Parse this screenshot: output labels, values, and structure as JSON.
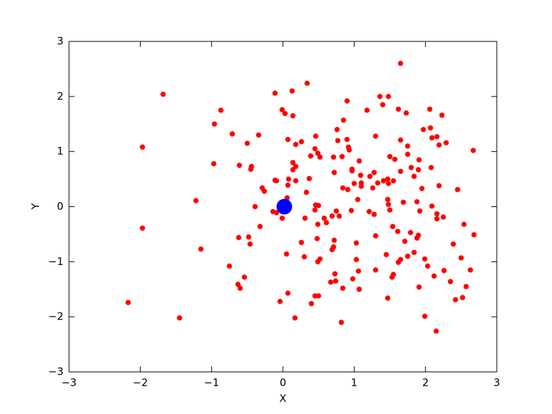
{
  "chart_data": {
    "type": "scatter",
    "xlabel": "X",
    "ylabel": "Y",
    "xlim": [
      -3,
      3
    ],
    "ylim": [
      -3,
      3
    ],
    "xticks": [
      {
        "value": -3,
        "label": "−3"
      },
      {
        "value": -2,
        "label": "−2"
      },
      {
        "value": -1,
        "label": "−1"
      },
      0,
      1,
      2,
      3
    ],
    "yticks": [
      {
        "value": -3,
        "label": "−3"
      },
      {
        "value": -2,
        "label": "−2"
      },
      {
        "value": -1,
        "label": "−1"
      },
      0,
      1,
      2,
      3
    ],
    "grid": false,
    "series": [
      {
        "color": "#ff0000",
        "marker_size": 7,
        "x": [
          1.65,
          -1.68,
          0.34,
          -0.11,
          0.13,
          1.36,
          1.48,
          1.4,
          -0.87,
          -0.01,
          0.03,
          0.14,
          1.18,
          0.9,
          1.62,
          1.73,
          2.06,
          2.23,
          -0.96,
          0.85,
          -0.71,
          -0.34,
          0.76,
          1.97,
          2.07,
          -1.97,
          -0.5,
          0.07,
          0.18,
          0.26,
          0.46,
          0.77,
          0.9,
          1.3,
          1.65,
          2.09,
          2.16,
          2.19,
          2.29,
          2.67,
          0.45,
          0.49,
          0.52,
          0.92,
          0.93,
          0.39,
          0.71,
          0.83,
          1.07,
          1.5,
          1.57,
          1.75,
          1.75,
          1.91,
          -0.97,
          -0.61,
          -0.44,
          -0.45,
          0.14,
          0.18,
          0.14,
          0.97,
          0.97,
          0.72,
          1.09,
          1.22,
          1.28,
          1.65,
          1.8,
          1.9,
          2.08,
          1.84,
          -0.11,
          -0.09,
          0.08,
          0.07,
          0.18,
          0.37,
          1.0,
          1.1,
          1.1,
          0.91,
          0.84,
          1.26,
          1.33,
          1.41,
          1.47,
          1.55,
          1.48,
          2.19,
          2.45,
          1.95,
          -0.29,
          -0.26,
          0.33,
          -1.22,
          -0.39,
          1.05,
          1.47,
          1.48,
          1.69,
          1.88,
          2.09,
          0.06,
          0.46,
          0.5,
          0.45,
          -0.14,
          -0.01,
          0.31,
          0.58,
          0.75,
          0.79,
          0.69,
          0.96,
          1.21,
          1.28,
          1.5,
          1.92,
          2.16,
          2.16,
          2.25,
          2.54,
          0.49,
          0.61,
          -0.32,
          1.54,
          1.61,
          1.79,
          1.9,
          1.88,
          2.68,
          -1.97,
          -0.62,
          -0.48,
          -0.46,
          0.48,
          1.3,
          0.72,
          0.26,
          1.03,
          1.71,
          2.39,
          -1.15,
          0.71,
          0.69,
          0.05,
          1.45,
          1.84,
          1.75,
          0.3,
          0.52,
          0.49,
          1.03,
          1.65,
          1.62,
          1.99,
          2.03,
          2.5,
          -0.75,
          -0.54,
          -0.63,
          -0.6,
          0.73,
          1.06,
          1.3,
          1.55,
          1.53,
          2.12,
          2.26,
          2.63,
          0.74,
          0.98,
          2.35,
          0.67,
          1.07,
          0.84,
          1.91,
          2.57,
          0.07,
          0.45,
          0.5,
          0.4,
          1.47,
          2.52,
          2.42,
          -2.17,
          -0.04,
          -1.45,
          0.17,
          1.99,
          0.82,
          2.15,
          -0.09
        ],
        "values": [
          2.6,
          2.04,
          2.24,
          2.06,
          2.1,
          2.0,
          2.0,
          1.85,
          1.75,
          1.76,
          1.69,
          1.65,
          1.75,
          1.92,
          1.77,
          1.7,
          1.77,
          1.66,
          1.5,
          1.57,
          1.32,
          1.3,
          1.4,
          1.4,
          1.43,
          1.08,
          1.15,
          1.22,
          1.13,
          1.18,
          1.28,
          1.2,
          1.22,
          1.28,
          1.21,
          1.25,
          1.27,
          1.12,
          1.16,
          1.02,
          1.05,
          0.97,
          0.9,
          1.08,
          1.03,
          0.92,
          0.9,
          0.91,
          0.83,
          0.91,
          0.86,
          1.1,
          0.95,
          0.85,
          0.78,
          0.75,
          0.73,
          0.68,
          0.8,
          0.73,
          0.67,
          0.68,
          0.65,
          0.62,
          0.57,
          0.55,
          0.62,
          0.64,
          0.71,
          0.67,
          0.71,
          0.55,
          0.48,
          0.47,
          0.5,
          0.39,
          0.47,
          0.51,
          0.42,
          0.43,
          0.37,
          0.31,
          0.34,
          0.34,
          0.43,
          0.47,
          0.5,
          0.47,
          0.42,
          0.38,
          0.31,
          0.33,
          0.34,
          0.28,
          0.26,
          0.11,
          0.0,
          0.13,
          0.13,
          0.04,
          0.08,
          0.09,
          0.01,
          0.16,
          0.03,
          0.02,
          -0.06,
          -0.09,
          -0.21,
          -0.21,
          -0.21,
          -0.08,
          -0.17,
          -0.17,
          -0.07,
          -0.09,
          -0.14,
          -0.06,
          -0.08,
          -0.13,
          -0.22,
          -0.19,
          -0.32,
          -0.32,
          -0.29,
          -0.36,
          -0.36,
          -0.45,
          -0.47,
          -0.52,
          -0.57,
          -0.51,
          -0.39,
          -0.56,
          -0.55,
          -0.68,
          -0.58,
          -0.53,
          -0.61,
          -0.65,
          -0.66,
          -0.63,
          -0.68,
          -0.77,
          -0.73,
          -0.78,
          -0.86,
          -0.87,
          -0.83,
          -0.9,
          -0.91,
          -0.95,
          -1.0,
          -0.96,
          -0.96,
          -1.01,
          -0.95,
          -1.08,
          -0.93,
          -1.08,
          -1.28,
          -1.41,
          -1.48,
          -1.22,
          -1.17,
          -1.15,
          -1.23,
          -1.28,
          -1.26,
          -1.16,
          -1.15,
          -1.35,
          -1.31,
          -1.36,
          -1.37,
          -1.5,
          -1.48,
          -1.46,
          -1.45,
          -1.57,
          -1.62,
          -1.62,
          -1.76,
          -1.66,
          -1.65,
          -1.69,
          -1.74,
          -1.72,
          -2.02,
          -2.02,
          -1.99,
          -2.1,
          -2.26,
          -0.11
        ]
      },
      {
        "color": "#0000ff",
        "marker_size": 22,
        "x": [
          0.02
        ],
        "values": [
          0.0
        ]
      }
    ]
  }
}
